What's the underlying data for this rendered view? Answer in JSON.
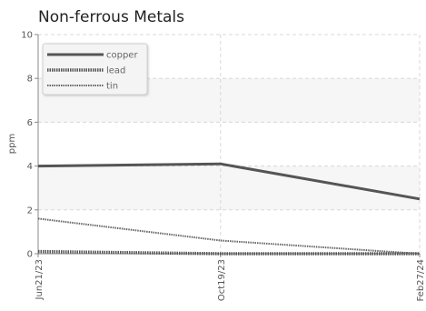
{
  "chart_data": {
    "type": "line",
    "title": "Non-ferrous Metals",
    "xlabel": "",
    "ylabel": "ppm",
    "categories": [
      "Jun21/23",
      "Oct19/23",
      "Feb27/24"
    ],
    "x_days": [
      0,
      120,
      251
    ],
    "ylim": [
      0,
      10
    ],
    "yticks": [
      0,
      2,
      4,
      6,
      8,
      10
    ],
    "grid": true,
    "legend": "top-left",
    "series": [
      {
        "name": "copper",
        "values": [
          4.0,
          4.1,
          2.5
        ],
        "color": "#555555",
        "style": "solid"
      },
      {
        "name": "lead",
        "values": [
          0.1,
          0.0,
          0.0
        ],
        "color": "#555555",
        "style": "dotted-thick"
      },
      {
        "name": "tin",
        "values": [
          1.6,
          0.6,
          0.0
        ],
        "color": "#666666",
        "style": "dotted"
      }
    ]
  }
}
